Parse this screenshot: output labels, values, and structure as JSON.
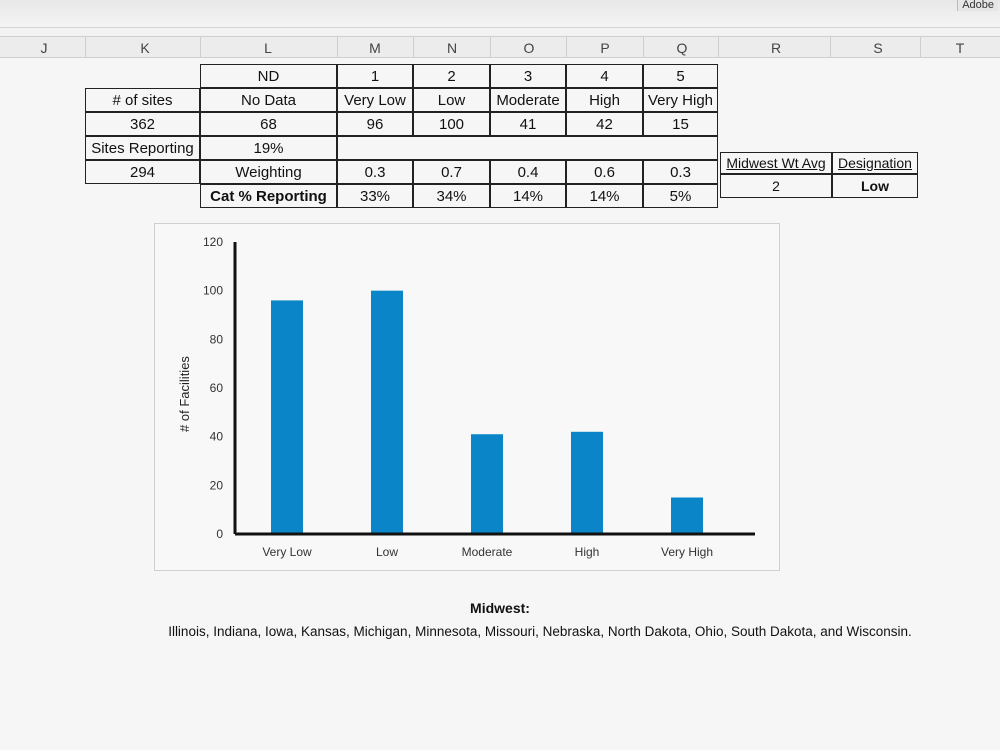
{
  "window": {
    "adobe_label": "Adobe"
  },
  "columns": [
    "J",
    "K",
    "L",
    "M",
    "N",
    "O",
    "P",
    "Q",
    "R",
    "S",
    "T"
  ],
  "table": {
    "levels": [
      "ND",
      "1",
      "2",
      "3",
      "4",
      "5"
    ],
    "labels": [
      "No Data",
      "Very Low",
      "Low",
      "Moderate",
      "High",
      "Very High"
    ],
    "counts": [
      "68",
      "96",
      "100",
      "41",
      "42",
      "15"
    ],
    "nd_pct": "19%",
    "weighting_label": "Weighting",
    "weights": [
      "0.3",
      "0.7",
      "0.4",
      "0.6",
      "0.3"
    ],
    "cat_pct_label": "Cat % Reporting",
    "cat_pcts": [
      "33%",
      "34%",
      "14%",
      "14%",
      "5%"
    ],
    "sites_label": "# of sites",
    "sites_value": "362",
    "reporting_label": "Sites Reporting",
    "reporting_value": "294"
  },
  "summary": {
    "wt_avg_label": "Midwest Wt Avg",
    "designation_label": "Designation",
    "wt_avg_value": "2",
    "designation_value": "Low"
  },
  "chart_data": {
    "type": "bar",
    "categories": [
      "Very Low",
      "Low",
      "Moderate",
      "High",
      "Very High"
    ],
    "values": [
      96,
      100,
      41,
      42,
      15
    ],
    "ylabel": "# of Facilities",
    "ylim": [
      0,
      120
    ],
    "yticks": [
      0,
      20,
      40,
      60,
      80,
      100,
      120
    ],
    "grid": false,
    "color": "#0a86c8"
  },
  "footer": {
    "title": "Midwest:",
    "states": "Illinois, Indiana, Iowa, Kansas, Michigan, Minnesota, Missouri, Nebraska, North Dakota, Ohio, South Dakota, and Wisconsin."
  }
}
